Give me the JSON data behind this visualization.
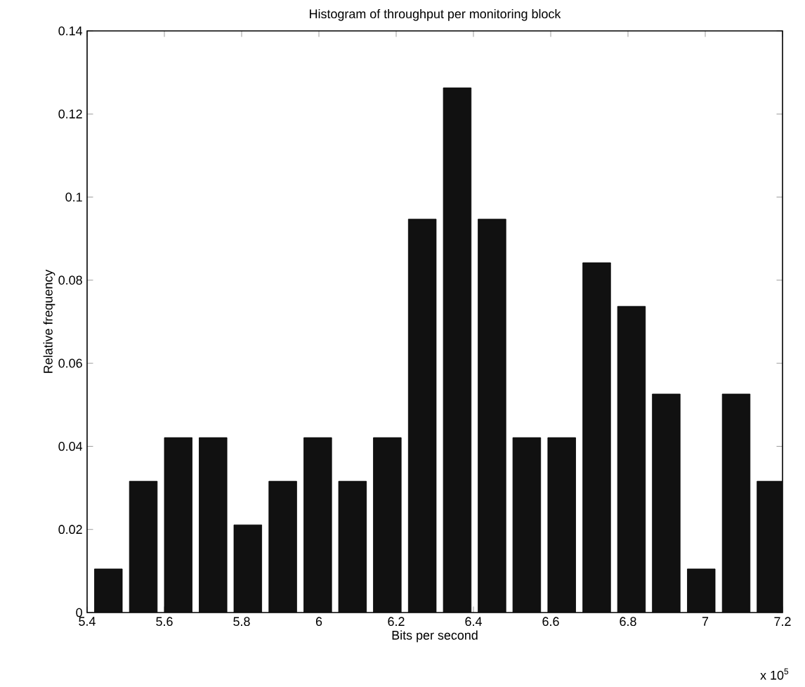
{
  "chart_data": {
    "type": "histogram",
    "title": "Histogram of throughput per monitoring block",
    "xlabel": "Bits per second",
    "ylabel": "Relative frequency",
    "annotations": [
      "x 10$^{5}$"
    ],
    "bins": [
      5.41,
      5.5,
      5.591,
      5.681,
      5.771,
      5.861,
      5.952,
      6.042,
      6.132,
      6.222,
      6.313,
      6.403,
      6.493,
      6.583,
      6.674,
      6.764,
      6.854,
      6.944,
      7.035,
      7.125,
      7.215
    ],
    "values": [
      0.0105,
      0.0316,
      0.0421,
      0.0421,
      0.0211,
      0.0316,
      0.0421,
      0.0316,
      0.0421,
      0.0947,
      0.1263,
      0.0947,
      0.0421,
      0.0421,
      0.0842,
      0.0737,
      0.0526,
      0.0105,
      0.0526,
      0.0316
    ],
    "color": "#111111",
    "xlim": [
      5.4,
      7.2
    ],
    "xticks": [
      5.4,
      5.6,
      5.8,
      6,
      6.2,
      6.4,
      6.6,
      6.8,
      7,
      7.2
    ],
    "ylim": [
      0,
      0.14
    ],
    "yticks": [
      0,
      0.02,
      0.04,
      0.06,
      0.08,
      0.1,
      0.12,
      0.14
    ]
  }
}
